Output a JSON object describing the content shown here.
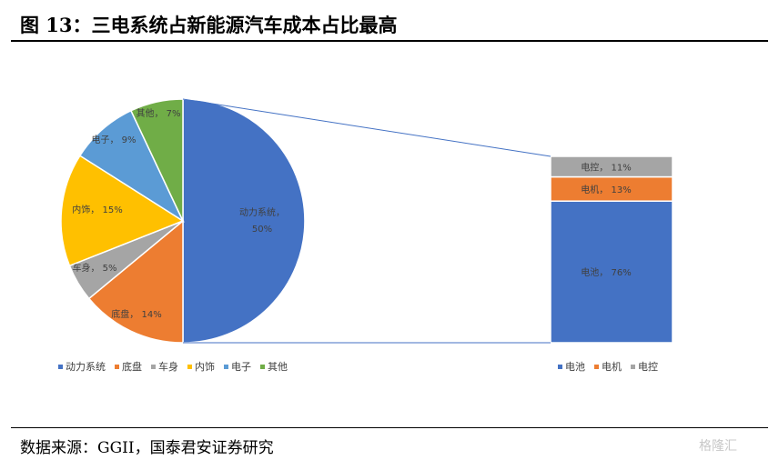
{
  "header": {
    "title": "图 13：三电系统占新能源汽车成本占比最高"
  },
  "footer": {
    "source": "数据来源：GGII，国泰君安证券研究",
    "watermark": "格隆汇"
  },
  "chart_data": [
    {
      "type": "pie",
      "slices": [
        {
          "name": "动力系统",
          "value": 50,
          "label": "50%",
          "color": "#4472C4"
        },
        {
          "name": "底盘",
          "value": 14,
          "label": "14%",
          "color": "#ED7D31"
        },
        {
          "name": "车身",
          "value": 5,
          "label": "5%",
          "color": "#A5A5A5"
        },
        {
          "name": "内饰",
          "value": 15,
          "label": "15%",
          "color": "#FFC000"
        },
        {
          "name": "电子",
          "value": 9,
          "label": "9%",
          "color": "#5B9BD5"
        },
        {
          "name": "其他",
          "value": 7,
          "label": "7%",
          "color": "#70AD47"
        }
      ],
      "legend": [
        "动力系统",
        "底盘",
        "车身",
        "内饰",
        "电子",
        "其他"
      ],
      "legend_position": "bottom-left"
    },
    {
      "type": "bar",
      "stacked": true,
      "breakdown_of": "动力系统",
      "series": [
        {
          "name": "电池",
          "value": 76,
          "label": "76%",
          "color": "#4472C4"
        },
        {
          "name": "电机",
          "value": 13,
          "label": "13%",
          "color": "#ED7D31"
        },
        {
          "name": "电控",
          "value": 11,
          "label": "11%",
          "color": "#A5A5A5"
        }
      ],
      "legend": [
        "电池",
        "电机",
        "电控"
      ],
      "legend_position": "bottom-right"
    }
  ]
}
